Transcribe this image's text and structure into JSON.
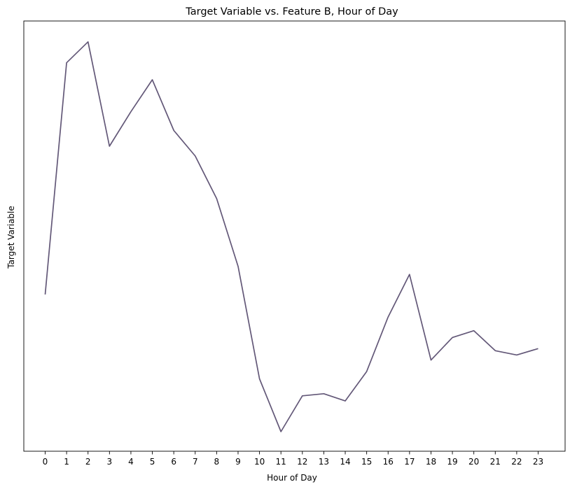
{
  "chart_data": {
    "type": "line",
    "title": "Target Variable vs. Feature B, Hour of Day",
    "xlabel": "Hour of Day",
    "ylabel": "Target Variable",
    "x": [
      0,
      1,
      2,
      3,
      4,
      5,
      6,
      7,
      8,
      9,
      10,
      11,
      12,
      13,
      14,
      15,
      16,
      17,
      18,
      19,
      20,
      21,
      22,
      23
    ],
    "series": [
      {
        "values": [
          0.353,
          0.897,
          0.946,
          0.701,
          0.782,
          0.857,
          0.738,
          0.678,
          0.578,
          0.419,
          0.155,
          0.031,
          0.115,
          0.12,
          0.103,
          0.172,
          0.3,
          0.4,
          0.199,
          0.252,
          0.268,
          0.221,
          0.211,
          0.226
        ],
        "color": "#635878"
      }
    ],
    "ylim": [
      -0.015,
      0.995
    ],
    "y_ticks_shown": false,
    "grid": false,
    "legend": "none"
  }
}
